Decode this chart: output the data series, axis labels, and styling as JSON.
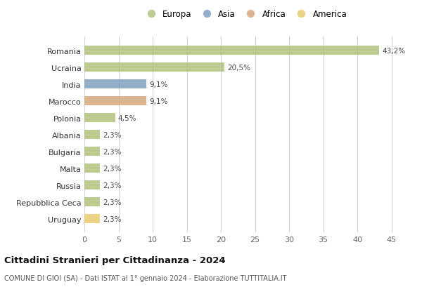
{
  "categories": [
    "Romania",
    "Ucraina",
    "India",
    "Marocco",
    "Polonia",
    "Albania",
    "Bulgaria",
    "Malta",
    "Russia",
    "Repubblica Ceca",
    "Uruguay"
  ],
  "values": [
    43.2,
    20.5,
    9.1,
    9.1,
    4.5,
    2.3,
    2.3,
    2.3,
    2.3,
    2.3,
    2.3
  ],
  "labels": [
    "43,2%",
    "20,5%",
    "9,1%",
    "9,1%",
    "4,5%",
    "2,3%",
    "2,3%",
    "2,3%",
    "2,3%",
    "2,3%",
    "2,3%"
  ],
  "colors": [
    "#adc178",
    "#adc178",
    "#7b9cbe",
    "#d4a57a",
    "#adc178",
    "#adc178",
    "#adc178",
    "#adc178",
    "#adc178",
    "#adc178",
    "#e8c96a"
  ],
  "legend": [
    {
      "label": "Europa",
      "color": "#adc178"
    },
    {
      "label": "Asia",
      "color": "#7b9cbe"
    },
    {
      "label": "Africa",
      "color": "#d4a57a"
    },
    {
      "label": "America",
      "color": "#e8c96a"
    }
  ],
  "xlim": [
    0,
    47
  ],
  "xticks": [
    0,
    5,
    10,
    15,
    20,
    25,
    30,
    35,
    40,
    45
  ],
  "title": "Cittadini Stranieri per Cittadinanza - 2024",
  "subtitle": "COMUNE DI GIOI (SA) - Dati ISTAT al 1° gennaio 2024 - Elaborazione TUTTITALIA.IT",
  "background_color": "#ffffff",
  "grid_color": "#d0d0d0",
  "bar_height": 0.55,
  "bar_alpha": 0.82
}
